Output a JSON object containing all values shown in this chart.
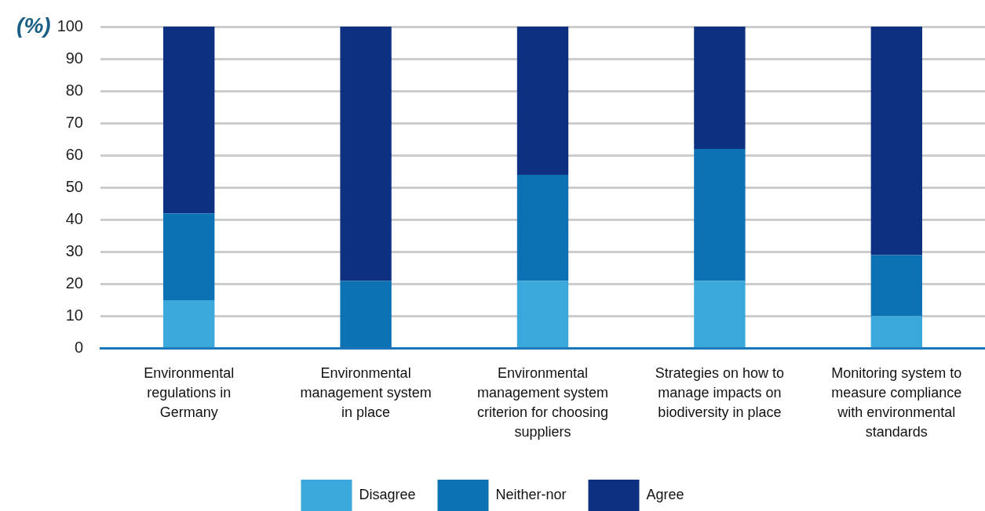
{
  "chart_data": {
    "type": "bar",
    "ylabel": "(%)",
    "categories": [
      "Environmental regulations in Germany",
      "Environmental management system in place",
      "Environmental management system criterion for choosing suppliers",
      "Strategies on how to manage impacts on biodiversity in place",
      "Monitoring system to measure compliance with environmental standards"
    ],
    "series": [
      {
        "name": "Disagree",
        "color": "#3aa8db",
        "values": [
          15,
          0,
          21,
          21,
          10
        ]
      },
      {
        "name": "Neither-nor",
        "color": "#0c72b4",
        "values": [
          27,
          21,
          33,
          41,
          19
        ]
      },
      {
        "name": "Agree",
        "color": "#0d3080",
        "values": [
          58,
          79,
          46,
          38,
          71
        ]
      }
    ],
    "stacked": true,
    "ylim": [
      0,
      100
    ],
    "yticks": [
      0,
      10,
      20,
      30,
      40,
      50,
      60,
      70,
      80,
      90,
      100
    ],
    "grid": "y",
    "legend": "bottom"
  }
}
